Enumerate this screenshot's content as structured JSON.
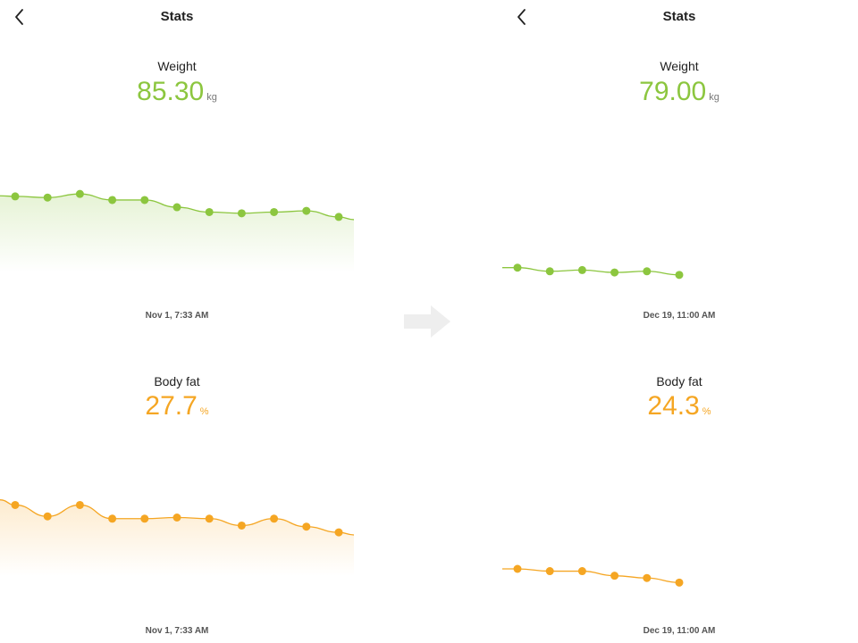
{
  "colors": {
    "weight": "#8cc63f",
    "fat": "#f5a623",
    "arrow": "#eeeeee"
  },
  "icons": {
    "back": "chevron-left-icon",
    "transition": "arrow-right-icon"
  },
  "screens": [
    {
      "title": "Stats",
      "weight": {
        "label": "Weight",
        "value": "85.30",
        "unit": "kg",
        "timestamp": "Nov 1, 7:33 AM",
        "series": [
          85.4,
          85.3,
          85.6,
          85.1,
          85.1,
          84.5,
          84.1,
          84.0,
          84.1,
          84.2,
          83.7
        ]
      },
      "fat": {
        "label": "Body fat",
        "value": "27.7",
        "unit": "%",
        "timestamp": "Nov 1, 7:33 AM",
        "series": [
          27.7,
          27.2,
          27.7,
          27.1,
          27.1,
          27.15,
          27.1,
          26.8,
          27.1,
          26.75,
          26.5
        ]
      }
    },
    {
      "title": "Stats",
      "weight": {
        "label": "Weight",
        "value": "79.00",
        "unit": "kg",
        "timestamp": "Dec 19, 11:00 AM",
        "series": [
          79.5,
          79.2,
          79.3,
          79.1,
          79.2,
          78.9
        ]
      },
      "fat": {
        "label": "Body fat",
        "value": "24.3",
        "unit": "%",
        "timestamp": "Dec 19, 11:00 AM",
        "series": [
          24.9,
          24.8,
          24.8,
          24.6,
          24.5,
          24.3
        ]
      }
    }
  ]
}
